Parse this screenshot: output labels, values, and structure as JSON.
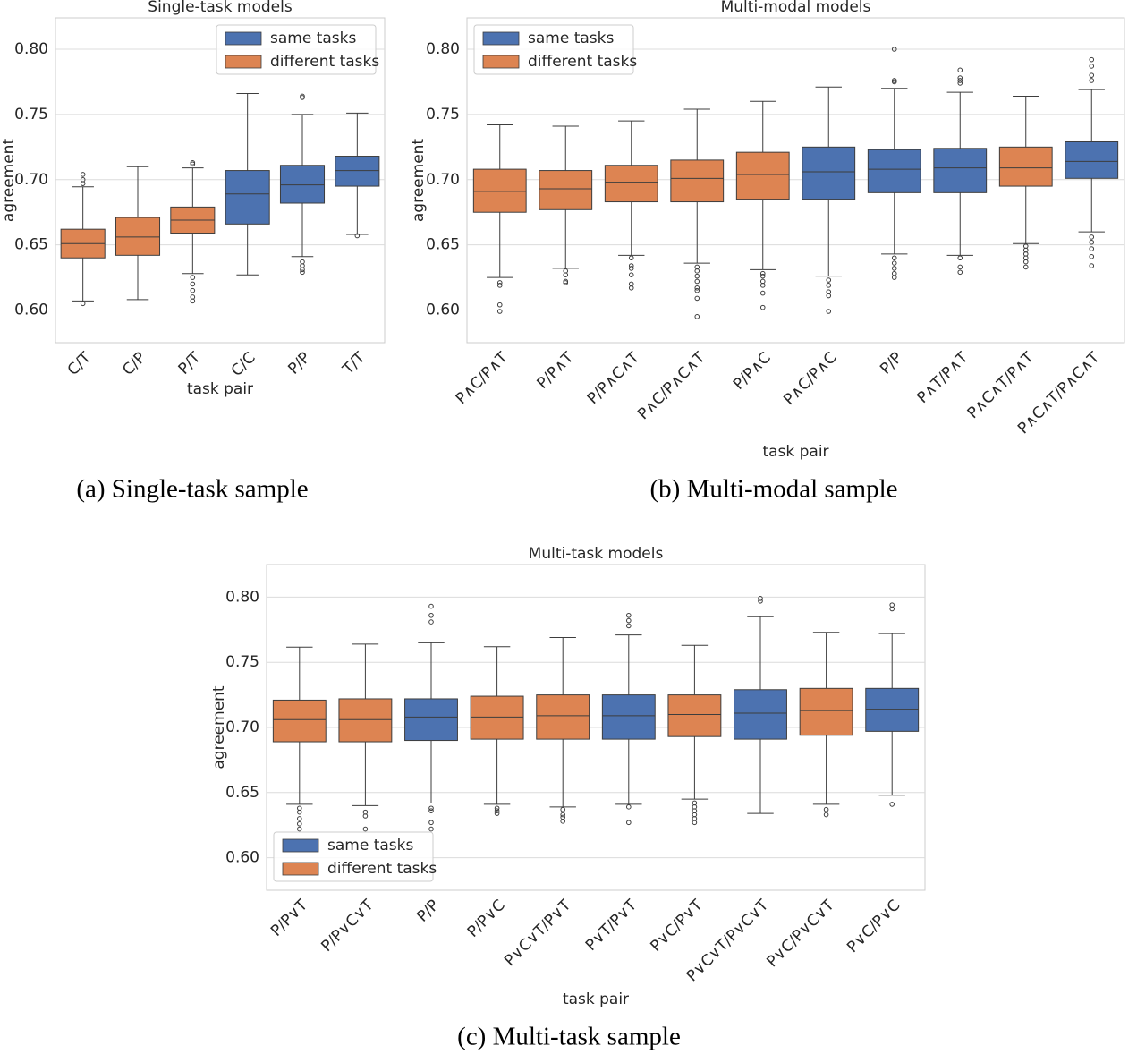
{
  "chart_data": [
    {
      "type": "box",
      "title": "Single-task models",
      "caption": "(a) Single-task sample",
      "xlabel": "task pair",
      "ylabel": "agreement",
      "legend": "upper right",
      "grid": true,
      "series": [
        {
          "name": "same tasks",
          "color": "#4c72b0"
        },
        {
          "name": "different tasks",
          "color": "#dd8452"
        }
      ],
      "ylim": [
        0.575,
        0.824
      ],
      "yticks": [
        {
          "value": 0.6,
          "label": "0.60"
        },
        0.65,
        {
          "value": 0.7,
          "label": "0.70"
        },
        0.75,
        {
          "value": 0.8,
          "label": "0.80"
        }
      ],
      "categories": [
        "C/T",
        "C/P",
        "P/T",
        "C/C",
        "P/P",
        "T/T"
      ],
      "boxes": [
        {
          "series": 1,
          "whislo": 0.607,
          "q1": 0.64,
          "med": 0.651,
          "q3": 0.662,
          "whishi": 0.6945,
          "fliers": [
            0.704,
            0.7,
            0.697,
            0.605
          ]
        },
        {
          "series": 1,
          "whislo": 0.608,
          "q1": 0.642,
          "med": 0.656,
          "q3": 0.671,
          "whishi": 0.71,
          "fliers": []
        },
        {
          "series": 1,
          "whislo": 0.628,
          "q1": 0.659,
          "med": 0.669,
          "q3": 0.679,
          "whishi": 0.709,
          "fliers": [
            0.713,
            0.712,
            0.625,
            0.62,
            0.615,
            0.61,
            0.607
          ]
        },
        {
          "series": 0,
          "whislo": 0.627,
          "q1": 0.666,
          "med": 0.689,
          "q3": 0.707,
          "whishi": 0.766,
          "fliers": []
        },
        {
          "series": 0,
          "whislo": 0.641,
          "q1": 0.682,
          "med": 0.696,
          "q3": 0.711,
          "whishi": 0.75,
          "fliers": [
            0.764,
            0.763,
            0.637,
            0.634,
            0.631,
            0.629
          ]
        },
        {
          "series": 0,
          "whislo": 0.658,
          "q1": 0.695,
          "med": 0.707,
          "q3": 0.718,
          "whishi": 0.751,
          "fliers": [
            0.657
          ]
        }
      ]
    },
    {
      "type": "box",
      "title": "Multi-modal models",
      "caption": "(b) Multi-modal sample",
      "xlabel": "task pair",
      "ylabel": "agreement",
      "legend": "upper left",
      "grid": true,
      "series": [
        {
          "name": "same tasks",
          "color": "#4c72b0"
        },
        {
          "name": "different tasks",
          "color": "#dd8452"
        }
      ],
      "ylim": [
        0.575,
        0.824
      ],
      "yticks": [
        {
          "value": 0.6,
          "label": "0.60"
        },
        0.65,
        {
          "value": 0.7,
          "label": "0.70"
        },
        0.75,
        {
          "value": 0.8,
          "label": "0.80"
        }
      ],
      "categories": [
        "P∧C/P∧T",
        "P/P∧T",
        "P/P∧C∧T",
        "P∧C/P∧C∧T",
        "P/P∧C",
        "P∧C/P∧C",
        "P/P",
        "P∧T/P∧T",
        "P∧C∧T/P∧T",
        "P∧C∧T/P∧C∧T"
      ],
      "boxes": [
        {
          "series": 1,
          "whislo": 0.625,
          "q1": 0.675,
          "med": 0.691,
          "q3": 0.708,
          "whishi": 0.742,
          "fliers": [
            0.621,
            0.619,
            0.604,
            0.599
          ]
        },
        {
          "series": 1,
          "whislo": 0.632,
          "q1": 0.677,
          "med": 0.693,
          "q3": 0.707,
          "whishi": 0.741,
          "fliers": [
            0.63,
            0.627,
            0.622,
            0.621
          ]
        },
        {
          "series": 1,
          "whislo": 0.642,
          "q1": 0.683,
          "med": 0.698,
          "q3": 0.711,
          "whishi": 0.745,
          "fliers": [
            0.64,
            0.634,
            0.632,
            0.627,
            0.62,
            0.617
          ]
        },
        {
          "series": 1,
          "whislo": 0.636,
          "q1": 0.683,
          "med": 0.701,
          "q3": 0.715,
          "whishi": 0.754,
          "fliers": [
            0.633,
            0.63,
            0.626,
            0.622,
            0.617,
            0.615,
            0.609,
            0.595
          ]
        },
        {
          "series": 1,
          "whislo": 0.631,
          "q1": 0.685,
          "med": 0.704,
          "q3": 0.721,
          "whishi": 0.76,
          "fliers": [
            0.628,
            0.626,
            0.622,
            0.619,
            0.613,
            0.602
          ]
        },
        {
          "series": 0,
          "whislo": 0.626,
          "q1": 0.685,
          "med": 0.706,
          "q3": 0.725,
          "whishi": 0.771,
          "fliers": [
            0.623,
            0.619,
            0.614,
            0.611,
            0.599
          ]
        },
        {
          "series": 0,
          "whislo": 0.643,
          "q1": 0.69,
          "med": 0.708,
          "q3": 0.723,
          "whishi": 0.77,
          "fliers": [
            0.8,
            0.776,
            0.775,
            0.64,
            0.636,
            0.632,
            0.628,
            0.625
          ]
        },
        {
          "series": 0,
          "whislo": 0.642,
          "q1": 0.69,
          "med": 0.709,
          "q3": 0.724,
          "whishi": 0.767,
          "fliers": [
            0.784,
            0.778,
            0.776,
            0.774,
            0.64,
            0.633,
            0.629
          ]
        },
        {
          "series": 1,
          "whislo": 0.651,
          "q1": 0.695,
          "med": 0.709,
          "q3": 0.725,
          "whishi": 0.764,
          "fliers": [
            0.649,
            0.646,
            0.643,
            0.64,
            0.637,
            0.633
          ]
        },
        {
          "series": 0,
          "whislo": 0.66,
          "q1": 0.701,
          "med": 0.714,
          "q3": 0.729,
          "whishi": 0.769,
          "fliers": [
            0.792,
            0.787,
            0.78,
            0.776,
            0.656,
            0.652,
            0.647,
            0.641,
            0.634
          ]
        }
      ]
    },
    {
      "type": "box",
      "title": "Multi-task models",
      "caption": "(c) Multi-task sample",
      "xlabel": "task pair",
      "ylabel": "agreement",
      "legend": "lower left",
      "grid": true,
      "series": [
        {
          "name": "same tasks",
          "color": "#4c72b0"
        },
        {
          "name": "different tasks",
          "color": "#dd8452"
        }
      ],
      "ylim": [
        0.575,
        0.825
      ],
      "yticks": [
        {
          "value": 0.6,
          "label": "0.60"
        },
        0.65,
        {
          "value": 0.7,
          "label": "0.70"
        },
        0.75,
        {
          "value": 0.8,
          "label": "0.80"
        }
      ],
      "categories": [
        "P/P∨T",
        "P/P∨C∨T",
        "P/P",
        "P/P∨C",
        "P∨C∨T/P∨T",
        "P∨T/P∨T",
        "P∨C/P∨T",
        "P∨C∨T/P∨C∨T",
        "P∨C/P∨C∨T",
        "P∨C/P∨C"
      ],
      "boxes": [
        {
          "series": 1,
          "whislo": 0.641,
          "q1": 0.689,
          "med": 0.706,
          "q3": 0.721,
          "whishi": 0.7616,
          "fliers": [
            0.638,
            0.635,
            0.63,
            0.626,
            0.622
          ]
        },
        {
          "series": 1,
          "whislo": 0.64,
          "q1": 0.689,
          "med": 0.706,
          "q3": 0.722,
          "whishi": 0.764,
          "fliers": [
            0.635,
            0.632,
            0.622
          ]
        },
        {
          "series": 0,
          "whislo": 0.642,
          "q1": 0.69,
          "med": 0.708,
          "q3": 0.722,
          "whishi": 0.765,
          "fliers": [
            0.793,
            0.786,
            0.781,
            0.638,
            0.636,
            0.627,
            0.622
          ]
        },
        {
          "series": 1,
          "whislo": 0.641,
          "q1": 0.691,
          "med": 0.708,
          "q3": 0.724,
          "whishi": 0.762,
          "fliers": [
            0.638,
            0.636,
            0.634
          ]
        },
        {
          "series": 1,
          "whislo": 0.639,
          "q1": 0.691,
          "med": 0.709,
          "q3": 0.725,
          "whishi": 0.769,
          "fliers": [
            0.637,
            0.633,
            0.631,
            0.628
          ]
        },
        {
          "series": 0,
          "whislo": 0.641,
          "q1": 0.691,
          "med": 0.709,
          "q3": 0.725,
          "whishi": 0.771,
          "fliers": [
            0.786,
            0.782,
            0.778,
            0.639,
            0.627
          ]
        },
        {
          "series": 1,
          "whislo": 0.645,
          "q1": 0.693,
          "med": 0.71,
          "q3": 0.725,
          "whishi": 0.763,
          "fliers": [
            0.642,
            0.639,
            0.636,
            0.633,
            0.63,
            0.627
          ]
        },
        {
          "series": 0,
          "whislo": 0.634,
          "q1": 0.691,
          "med": 0.711,
          "q3": 0.729,
          "whishi": 0.785,
          "fliers": [
            0.799,
            0.797
          ]
        },
        {
          "series": 1,
          "whislo": 0.641,
          "q1": 0.694,
          "med": 0.713,
          "q3": 0.73,
          "whishi": 0.773,
          "fliers": [
            0.637,
            0.633
          ]
        },
        {
          "series": 0,
          "whislo": 0.648,
          "q1": 0.697,
          "med": 0.714,
          "q3": 0.73,
          "whishi": 0.772,
          "fliers": [
            0.794,
            0.791,
            0.641
          ]
        }
      ]
    }
  ]
}
